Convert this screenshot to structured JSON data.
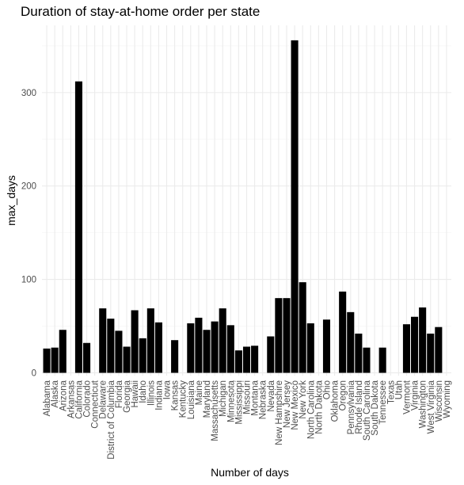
{
  "chart_data": {
    "type": "bar",
    "title": "Duration of stay-at-home order per state",
    "xlabel": "Number of days",
    "ylabel": "max_days",
    "ylim": [
      -3,
      372
    ],
    "yticks": [
      0,
      100,
      200,
      300
    ],
    "grid": true,
    "categories": [
      "Alabama",
      "Alaska",
      "Arizona",
      "Arkansas",
      "California",
      "Colorado",
      "Connecticut",
      "Delaware",
      "District of Columbia",
      "Florida",
      "Georgia",
      "Hawaii",
      "Idaho",
      "Illinois",
      "Indiana",
      "Iowa",
      "Kansas",
      "Kentucky",
      "Louisiana",
      "Maine",
      "Maryland",
      "Massachusetts",
      "Michigan",
      "Minnesota",
      "Mississippi",
      "Missouri",
      "Montana",
      "Nebraska",
      "Nevada",
      "New Hampshire",
      "New Jersey",
      "New Mexico",
      "New York",
      "North Carolina",
      "North Dakota",
      "Ohio",
      "Oklahoma",
      "Oregon",
      "Pennsylvania",
      "Rhode Island",
      "South Carolina",
      "South Dakota",
      "Tennessee",
      "Texas",
      "Utah",
      "Vermont",
      "Virginia",
      "Washington",
      "West Virginia",
      "Wisconsin",
      "Wyoming"
    ],
    "values": [
      26,
      27,
      46,
      0,
      312,
      32,
      0,
      69,
      58,
      45,
      28,
      67,
      37,
      69,
      54,
      0,
      35,
      0,
      53,
      59,
      46,
      55,
      69,
      51,
      24,
      28,
      29,
      0,
      39,
      80,
      80,
      356,
      97,
      53,
      0,
      57,
      0,
      87,
      65,
      42,
      27,
      0,
      27,
      0,
      0,
      52,
      60,
      70,
      42,
      49,
      0
    ],
    "bar_color": "#000000"
  }
}
